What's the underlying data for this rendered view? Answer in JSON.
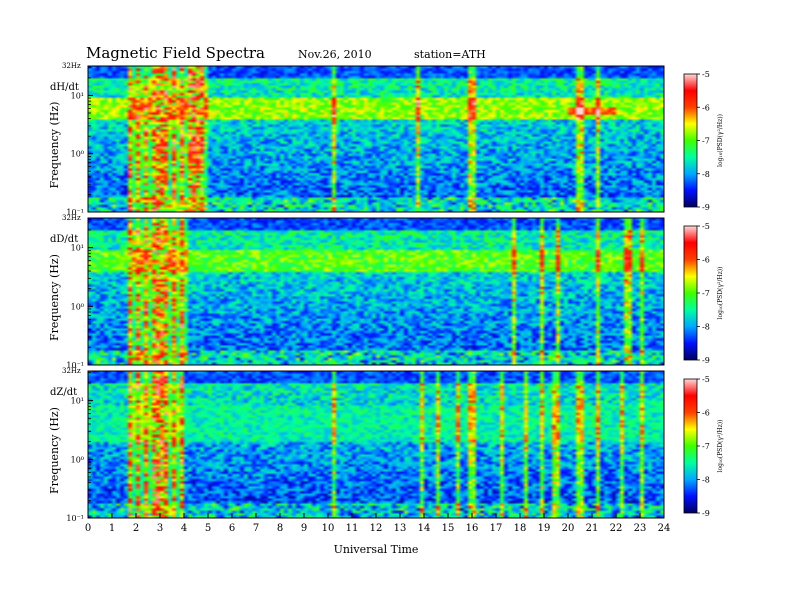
{
  "header": {
    "title": "Magnetic  Field  Spectra",
    "date": "Nov.26, 2010",
    "station": "station=ATH"
  },
  "chart_data": {
    "type": "heatmap",
    "xlabel": "Universal Time",
    "x_ticks": [
      "0",
      "1",
      "2",
      "3",
      "4",
      "5",
      "6",
      "7",
      "8",
      "9",
      "10",
      "11",
      "12",
      "13",
      "14",
      "15",
      "16",
      "17",
      "18",
      "19",
      "20",
      "21",
      "22",
      "23",
      "24"
    ],
    "xlim": [
      0,
      24
    ],
    "ylabel": "Frequency  (Hz)",
    "y_scale": "log",
    "ylim": [
      0.1,
      32
    ],
    "y_ticks": [
      "10⁻¹",
      "10⁰",
      "10¹"
    ],
    "y_top_label": "32Hz",
    "colorbar": {
      "label": "log₁₀(PSD(γ²/Hz))",
      "range": [
        -9,
        -5
      ],
      "ticks": [
        "-5",
        "-6",
        "-7",
        "-8",
        "-9"
      ],
      "colors": [
        "#000060",
        "#0010ff",
        "#00a8ff",
        "#00ffa0",
        "#40ff00",
        "#ffff00",
        "#ff4000",
        "#ff0000",
        "#ffd8d8"
      ]
    },
    "panels": [
      {
        "name": "dH/dt",
        "background_level": -8.3,
        "broadband_bursts_ut": [
          1.7,
          5.0
        ],
        "band_features": [
          {
            "freq_hz": [
              4,
              9
            ],
            "level": -6.8,
            "ut_range": [
              0,
              24
            ]
          },
          {
            "freq_hz": [
              4.5,
              6
            ],
            "level": -6.0,
            "ut_range": [
              20,
              22
            ]
          }
        ],
        "vertical_streaks_ut": [
          10.2,
          13.7,
          16.0,
          20.5,
          21.2
        ]
      },
      {
        "name": "dD/dt",
        "background_level": -8.3,
        "broadband_bursts_ut": [
          1.7,
          4.1
        ],
        "band_features": [
          {
            "freq_hz": [
              4,
              9
            ],
            "level": -7.0,
            "ut_range": [
              0,
              24
            ]
          }
        ],
        "vertical_streaks_ut": [
          17.8,
          18.9,
          19.6,
          21.3,
          22.5,
          23.1
        ]
      },
      {
        "name": "dZ/dt",
        "background_level": -8.4,
        "broadband_bursts_ut": [
          1.7,
          4.0
        ],
        "band_features": [
          {
            "freq_hz": [
              2,
              8
            ],
            "level": -7.6,
            "ut_range": [
              0,
              24
            ]
          }
        ],
        "vertical_streaks_ut": [
          10.2,
          13.9,
          14.6,
          15.4,
          16.0,
          17.2,
          18.2,
          18.9,
          19.5,
          20.5,
          21.2,
          22.3,
          23.1
        ]
      }
    ]
  }
}
